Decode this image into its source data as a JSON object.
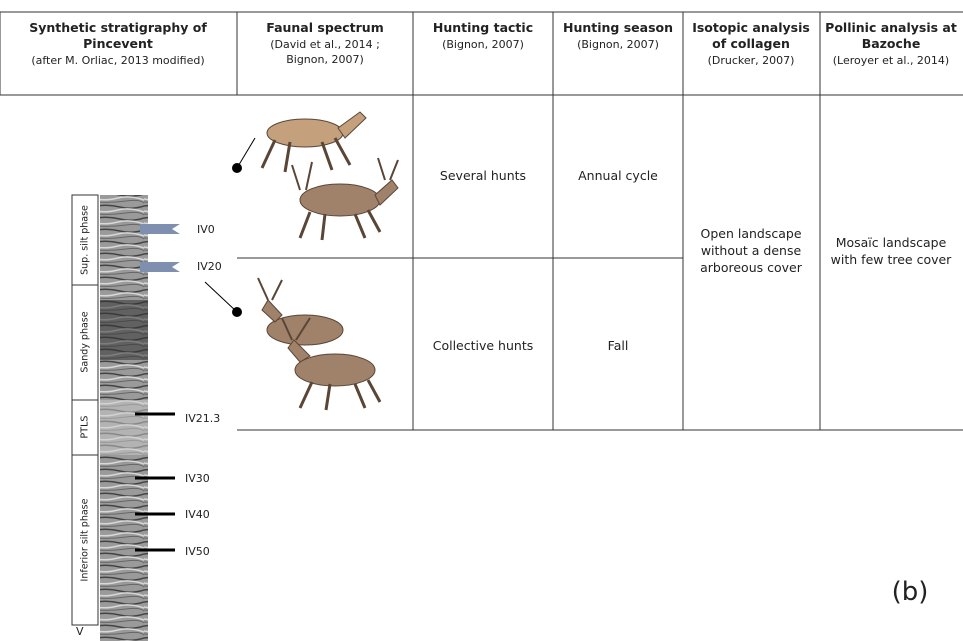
{
  "headers": [
    {
      "title": [
        "Synthetic stratigraphy of",
        "Pincevent"
      ],
      "source": [
        "(after M. Orliac, 2013 modified)"
      ]
    },
    {
      "title": [
        "Faunal spectrum"
      ],
      "source": [
        "(David et al., 2014 ;",
        "Bignon, 2007)"
      ]
    },
    {
      "title": [
        "Hunting tactic"
      ],
      "source": [
        "(Bignon, 2007)"
      ]
    },
    {
      "title": [
        "Hunting season"
      ],
      "source": [
        "(Bignon, 2007)"
      ]
    },
    {
      "title": [
        "Isotopic analysis",
        "of collagen"
      ],
      "source": [
        "(Drucker, 2007)"
      ]
    },
    {
      "title": [
        "Pollinic analysis at",
        "Bazoche"
      ],
      "source": [
        "(Leroyer et al., 2014)"
      ]
    }
  ],
  "phases": [
    "Sup. silt phase",
    "Sandy phase",
    "PTLS",
    "Inferior silt phase"
  ],
  "levels": [
    "IV0",
    "IV20",
    "IV21.3",
    "IV30",
    "IV40",
    "IV50",
    "V"
  ],
  "rows": [
    {
      "tactic": "Several hunts",
      "season": "Annual cycle"
    },
    {
      "tactic": "Collective hunts",
      "season": "Fall"
    }
  ],
  "isotopic": [
    "Open landscape",
    "without a dense",
    "arboreous cover"
  ],
  "pollinic": [
    "Mosaïc landscape",
    "with few tree cover"
  ],
  "panel": "(b)"
}
